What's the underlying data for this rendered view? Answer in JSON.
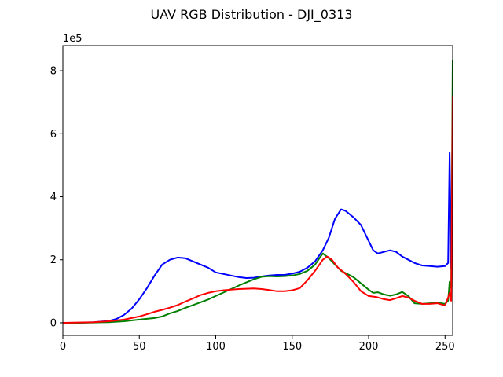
{
  "chart_data": {
    "type": "line",
    "title": "UAV RGB Distribution - DJI_0313",
    "xlabel": "",
    "ylabel": "",
    "y_offset_label": "1e5",
    "xlim": [
      0,
      255
    ],
    "ylim": [
      -0.4,
      8.8
    ],
    "x_ticks": [
      0,
      50,
      100,
      150,
      200,
      250
    ],
    "y_ticks": [
      0,
      2,
      4,
      6,
      8
    ],
    "grid": false,
    "legend": "none",
    "series": [
      {
        "color": "#0000ff",
        "points": [
          [
            0,
            0
          ],
          [
            10,
            0
          ],
          [
            20,
            0.02
          ],
          [
            30,
            0.06
          ],
          [
            35,
            0.12
          ],
          [
            40,
            0.25
          ],
          [
            45,
            0.45
          ],
          [
            50,
            0.75
          ],
          [
            55,
            1.1
          ],
          [
            60,
            1.5
          ],
          [
            65,
            1.85
          ],
          [
            70,
            2.0
          ],
          [
            75,
            2.07
          ],
          [
            80,
            2.05
          ],
          [
            85,
            1.95
          ],
          [
            90,
            1.85
          ],
          [
            95,
            1.75
          ],
          [
            100,
            1.6
          ],
          [
            105,
            1.55
          ],
          [
            110,
            1.5
          ],
          [
            115,
            1.45
          ],
          [
            120,
            1.42
          ],
          [
            125,
            1.43
          ],
          [
            130,
            1.47
          ],
          [
            135,
            1.5
          ],
          [
            140,
            1.52
          ],
          [
            145,
            1.52
          ],
          [
            150,
            1.56
          ],
          [
            155,
            1.62
          ],
          [
            160,
            1.75
          ],
          [
            165,
            1.95
          ],
          [
            170,
            2.3
          ],
          [
            174,
            2.7
          ],
          [
            178,
            3.3
          ],
          [
            182,
            3.6
          ],
          [
            185,
            3.55
          ],
          [
            190,
            3.35
          ],
          [
            195,
            3.1
          ],
          [
            200,
            2.6
          ],
          [
            203,
            2.3
          ],
          [
            206,
            2.2
          ],
          [
            210,
            2.25
          ],
          [
            214,
            2.3
          ],
          [
            218,
            2.25
          ],
          [
            222,
            2.1
          ],
          [
            226,
            2.0
          ],
          [
            230,
            1.9
          ],
          [
            235,
            1.82
          ],
          [
            240,
            1.8
          ],
          [
            245,
            1.78
          ],
          [
            250,
            1.8
          ],
          [
            252,
            1.9
          ],
          [
            253,
            5.4
          ],
          [
            254,
            1.7
          ],
          [
            255,
            1.7
          ]
        ]
      },
      {
        "color": "#008000",
        "points": [
          [
            0,
            0
          ],
          [
            10,
            0
          ],
          [
            20,
            0.01
          ],
          [
            30,
            0.02
          ],
          [
            40,
            0.05
          ],
          [
            50,
            0.1
          ],
          [
            60,
            0.15
          ],
          [
            65,
            0.2
          ],
          [
            70,
            0.3
          ],
          [
            75,
            0.37
          ],
          [
            80,
            0.47
          ],
          [
            85,
            0.56
          ],
          [
            90,
            0.65
          ],
          [
            95,
            0.74
          ],
          [
            100,
            0.85
          ],
          [
            105,
            0.96
          ],
          [
            110,
            1.07
          ],
          [
            115,
            1.18
          ],
          [
            120,
            1.28
          ],
          [
            125,
            1.38
          ],
          [
            130,
            1.46
          ],
          [
            135,
            1.48
          ],
          [
            140,
            1.47
          ],
          [
            145,
            1.48
          ],
          [
            150,
            1.5
          ],
          [
            155,
            1.55
          ],
          [
            160,
            1.65
          ],
          [
            165,
            1.85
          ],
          [
            170,
            2.2
          ],
          [
            174,
            2.05
          ],
          [
            178,
            1.85
          ],
          [
            182,
            1.65
          ],
          [
            186,
            1.55
          ],
          [
            190,
            1.45
          ],
          [
            195,
            1.25
          ],
          [
            200,
            1.05
          ],
          [
            203,
            0.95
          ],
          [
            206,
            0.97
          ],
          [
            210,
            0.9
          ],
          [
            214,
            0.86
          ],
          [
            218,
            0.9
          ],
          [
            222,
            0.98
          ],
          [
            226,
            0.85
          ],
          [
            230,
            0.62
          ],
          [
            235,
            0.6
          ],
          [
            240,
            0.62
          ],
          [
            245,
            0.64
          ],
          [
            250,
            0.6
          ],
          [
            252,
            0.7
          ],
          [
            253,
            1.3
          ],
          [
            254,
            1.1
          ],
          [
            255,
            8.35
          ]
        ]
      },
      {
        "color": "#ff0000",
        "points": [
          [
            0,
            0
          ],
          [
            10,
            0.01
          ],
          [
            20,
            0.02
          ],
          [
            30,
            0.05
          ],
          [
            40,
            0.1
          ],
          [
            50,
            0.2
          ],
          [
            55,
            0.27
          ],
          [
            60,
            0.35
          ],
          [
            65,
            0.41
          ],
          [
            70,
            0.48
          ],
          [
            75,
            0.56
          ],
          [
            80,
            0.67
          ],
          [
            85,
            0.77
          ],
          [
            90,
            0.88
          ],
          [
            95,
            0.95
          ],
          [
            100,
            1.0
          ],
          [
            105,
            1.03
          ],
          [
            110,
            1.05
          ],
          [
            115,
            1.07
          ],
          [
            120,
            1.08
          ],
          [
            125,
            1.09
          ],
          [
            130,
            1.07
          ],
          [
            135,
            1.04
          ],
          [
            140,
            1.0
          ],
          [
            145,
            1.0
          ],
          [
            150,
            1.03
          ],
          [
            155,
            1.1
          ],
          [
            160,
            1.35
          ],
          [
            165,
            1.65
          ],
          [
            170,
            2.0
          ],
          [
            173,
            2.1
          ],
          [
            176,
            2.0
          ],
          [
            180,
            1.75
          ],
          [
            185,
            1.55
          ],
          [
            190,
            1.3
          ],
          [
            195,
            1.0
          ],
          [
            200,
            0.85
          ],
          [
            205,
            0.82
          ],
          [
            210,
            0.75
          ],
          [
            214,
            0.72
          ],
          [
            218,
            0.78
          ],
          [
            222,
            0.85
          ],
          [
            226,
            0.8
          ],
          [
            230,
            0.7
          ],
          [
            235,
            0.6
          ],
          [
            240,
            0.6
          ],
          [
            245,
            0.62
          ],
          [
            250,
            0.55
          ],
          [
            252,
            0.8
          ],
          [
            253,
            0.95
          ],
          [
            254,
            0.7
          ],
          [
            255,
            7.2
          ]
        ]
      }
    ]
  }
}
